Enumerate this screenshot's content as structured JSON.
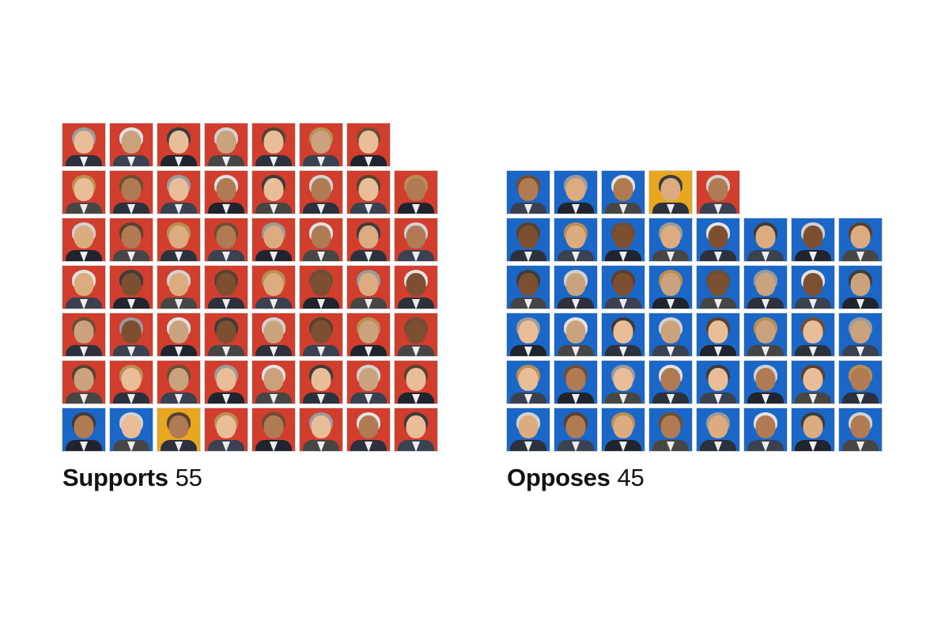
{
  "page": {
    "background": "#ffffff"
  },
  "colors": {
    "red": "#d23e2d",
    "blue": "#1a67c8",
    "yellow": "#e9a71f",
    "tile_outline": "#d9d9d9",
    "text": "#121212"
  },
  "groups": [
    {
      "id": "supports",
      "label": "Supports",
      "count": "55",
      "rows": [
        [
          "red",
          "red",
          "red",
          "red",
          "red",
          "red",
          "red"
        ],
        [
          "red",
          "red",
          "red",
          "red",
          "red",
          "red",
          "red",
          "red"
        ],
        [
          "red",
          "red",
          "red",
          "red",
          "red",
          "red",
          "red",
          "red"
        ],
        [
          "red",
          "red",
          "red",
          "red",
          "red",
          "red",
          "red",
          "red"
        ],
        [
          "red",
          "red",
          "red",
          "red",
          "red",
          "red",
          "red",
          "red"
        ],
        [
          "red",
          "red",
          "red",
          "red",
          "red",
          "red",
          "red",
          "red"
        ],
        [
          "blue",
          "blue",
          "yellow",
          "red",
          "red",
          "red",
          "red",
          "red"
        ]
      ]
    },
    {
      "id": "opposes",
      "label": "Opposes",
      "count": "45",
      "rows": [
        [
          "blue",
          "blue",
          "blue",
          "yellow",
          "red"
        ],
        [
          "blue",
          "blue",
          "blue",
          "blue",
          "blue",
          "blue",
          "blue",
          "blue"
        ],
        [
          "blue",
          "blue",
          "blue",
          "blue",
          "blue",
          "blue",
          "blue",
          "blue"
        ],
        [
          "blue",
          "blue",
          "blue",
          "blue",
          "blue",
          "blue",
          "blue",
          "blue"
        ],
        [
          "blue",
          "blue",
          "blue",
          "blue",
          "blue",
          "blue",
          "blue",
          "blue"
        ],
        [
          "blue",
          "blue",
          "blue",
          "blue",
          "blue",
          "blue",
          "blue",
          "blue"
        ]
      ]
    }
  ],
  "chart_data": {
    "type": "unit_grid",
    "title": "",
    "categories": [
      "Supports",
      "Opposes"
    ],
    "values": [
      55,
      45
    ],
    "unit": "one portrait tile = one senator",
    "series": [
      {
        "name": "Supports",
        "total": 55,
        "by_color": {
          "red": 52,
          "blue": 2,
          "yellow": 1
        }
      },
      {
        "name": "Opposes",
        "total": 45,
        "by_color": {
          "blue": 43,
          "yellow": 1,
          "red": 1
        }
      }
    ],
    "layout": {
      "supports_row_lengths": [
        7,
        8,
        8,
        8,
        8,
        8,
        8
      ],
      "opposes_row_lengths": [
        5,
        8,
        8,
        8,
        8,
        8
      ],
      "grids_bottom_aligned": true,
      "legend": "none",
      "gridlines": false
    },
    "colors": {
      "red": "#d23e2d",
      "blue": "#1a67c8",
      "yellow": "#e9a71f"
    }
  }
}
